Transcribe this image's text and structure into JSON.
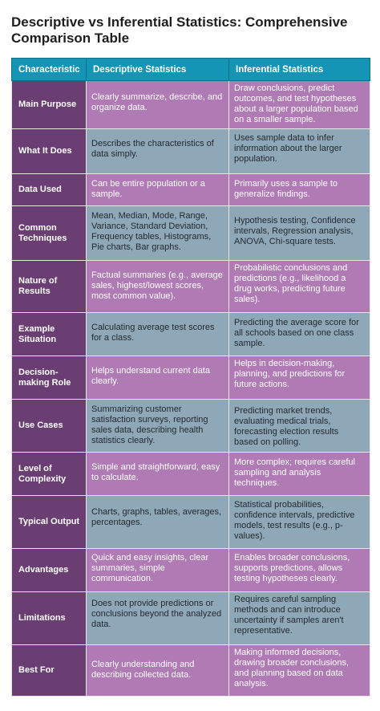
{
  "title": "Descriptive vs Inferential Statistics: Comprehensive Comparison Table",
  "table": {
    "headers": [
      "Characteristic",
      "Descriptive Statistics",
      "Inferential Statistics"
    ],
    "rows": [
      {
        "characteristic": "Main Purpose",
        "descriptive": "Clearly summarize, describe, and organize data.",
        "inferential": "Draw conclusions, predict outcomes, and test hypotheses about a larger population based on a smaller sample."
      },
      {
        "characteristic": "What It Does",
        "descriptive": "Describes the characteristics of data simply.",
        "inferential": "Uses sample data to infer information about the larger population."
      },
      {
        "characteristic": "Data Used",
        "descriptive": "Can be entire population or a sample.",
        "inferential": "Primarily uses a sample to generalize findings."
      },
      {
        "characteristic": "Common Techniques",
        "descriptive": "Mean, Median, Mode, Range, Variance, Standard Deviation, Frequency tables, Histograms, Pie charts, Bar graphs.",
        "inferential": "Hypothesis testing, Confidence intervals, Regression analysis, ANOVA, Chi-square tests."
      },
      {
        "characteristic": "Nature of Results",
        "descriptive": "Factual summaries (e.g., average sales, highest/lowest scores, most common value).",
        "inferential": "Probabilistic conclusions and predictions (e.g., likelihood a drug works, predicting future sales)."
      },
      {
        "characteristic": "Example Situation",
        "descriptive": "Calculating average test scores for a class.",
        "inferential": "Predicting the average score for all schools based on one class sample."
      },
      {
        "characteristic": "Decision-making Role",
        "descriptive": "Helps understand current data clearly.",
        "inferential": "Helps in decision-making, planning, and predictions for future actions."
      },
      {
        "characteristic": "Use Cases",
        "descriptive": "Summarizing customer satisfaction surveys, reporting sales data, describing health statistics clearly.",
        "inferential": "Predicting market trends, evaluating medical trials, forecasting election results based on polling."
      },
      {
        "characteristic": "Level of Complexity",
        "descriptive": "Simple and straightforward; easy to calculate.",
        "inferential": "More complex; requires careful sampling and analysis techniques."
      },
      {
        "characteristic": "Typical Output",
        "descriptive": "Charts, graphs, tables, averages, percentages.",
        "inferential": "Statistical probabilities, confidence intervals, predictive models, test results (e.g., p-values)."
      },
      {
        "characteristic": "Advantages",
        "descriptive": "Quick and easy insights, clear summaries, simple communication.",
        "inferential": "Enables broader conclusions, supports predictions, allows testing hypotheses clearly."
      },
      {
        "characteristic": "Limitations",
        "descriptive": "Does not provide predictions or conclusions beyond the analyzed data.",
        "inferential": "Requires careful sampling methods and can introduce uncertainty if samples aren't representative."
      },
      {
        "characteristic": "Best For",
        "descriptive": "Clearly understanding and describing collected data.",
        "inferential": "Making informed decisions, drawing broader conclusions, and planning based on data analysis."
      }
    ]
  },
  "colors": {
    "header_bg": "#1595b5",
    "characteristic_bg": "#6a3e72",
    "purple_row_bg": "#b07ab5",
    "gray_row_bg": "#8fa8b8"
  }
}
